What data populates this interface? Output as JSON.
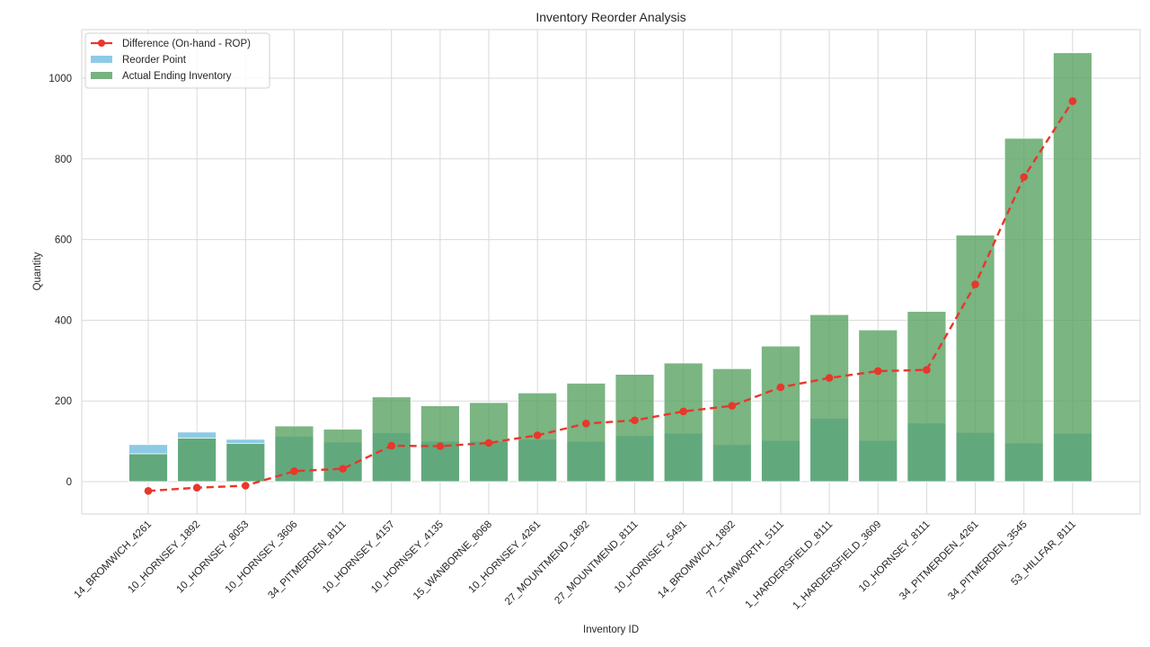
{
  "chart_data": {
    "type": "bar",
    "title": "Inventory Reorder Analysis",
    "xlabel": "Inventory ID",
    "ylabel": "Quantity",
    "ylim": [
      -80,
      1110
    ],
    "yticks": [
      0,
      200,
      400,
      600,
      800,
      1000
    ],
    "grid": true,
    "legend_position": "upper left",
    "categories": [
      "14_BROMWICH_4261",
      "10_HORNSEY_1892",
      "10_HORNSEY_8053",
      "10_HORNSEY_3606",
      "34_PITMERDEN_8111",
      "10_HORNSEY_4157",
      "10_HORNSEY_4135",
      "15_WANBORNE_8068",
      "10_HORNSEY_4261",
      "27_MOUNTMEND_1892",
      "27_MOUNTMEND_8111",
      "10_HORNSEY_5491",
      "14_BROMWICH_1892",
      "77_TAMWORTH_5111",
      "1_HARDERSFIELD_8111",
      "1_HARDERSFIELD_3609",
      "10_HORNSEY_8111",
      "34_PITMERDEN_4261",
      "34_PITMERDEN_3545",
      "53_HILLFAR_8111"
    ],
    "series": [
      {
        "name": "Reorder Point",
        "kind": "bar",
        "color": "#8ecae6",
        "values": [
          92,
          123,
          105,
          112,
          98,
          121,
          100,
          100,
          105,
          100,
          114,
          120,
          92,
          102,
          157,
          102,
          145,
          122,
          96,
          120
        ]
      },
      {
        "name": "Actual Ending Inventory",
        "kind": "bar",
        "color": "#55a05f",
        "values": [
          69,
          108,
          95,
          138,
          130,
          210,
          188,
          196,
          220,
          244,
          266,
          294,
          280,
          336,
          414,
          376,
          422,
          611,
          851,
          1063
        ]
      },
      {
        "name": "Difference (On-hand - ROP)",
        "kind": "line",
        "color": "#e8372b",
        "linestyle": "dashed",
        "marker": "circle",
        "values": [
          -23,
          -15,
          -10,
          26,
          32,
          89,
          88,
          96,
          115,
          144,
          152,
          174,
          188,
          234,
          257,
          274,
          277,
          489,
          755,
          943
        ]
      }
    ],
    "legend": [
      {
        "label": "Difference (On-hand - ROP)",
        "type": "line",
        "color": "#e8372b"
      },
      {
        "label": "Reorder Point",
        "type": "patch",
        "color": "#8ecae6"
      },
      {
        "label": "Actual Ending Inventory",
        "type": "patch",
        "color": "#55a05f"
      }
    ]
  }
}
